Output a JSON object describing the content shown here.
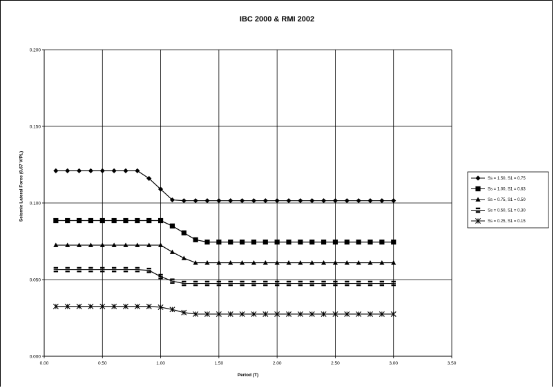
{
  "chart_data": {
    "type": "line",
    "title": "IBC 2000 & RMI 2002",
    "xlabel": "Period (T)",
    "ylabel": "Seismic Lateral Force (0.67 V/PL)",
    "xlim": [
      0,
      3.5
    ],
    "ylim": [
      0,
      0.2
    ],
    "x_ticks": [
      "0.00",
      "0.50",
      "1.00",
      "1.50",
      "2.00",
      "2.50",
      "3.00",
      "3.50"
    ],
    "y_ticks": [
      "0.000",
      "0.050",
      "0.100",
      "0.150",
      "0.200"
    ],
    "grid": true,
    "legend_position": "right",
    "x": [
      0.1,
      0.2,
      0.3,
      0.4,
      0.5,
      0.6,
      0.7,
      0.8,
      0.9,
      1.0,
      1.1,
      1.2,
      1.3,
      1.4,
      1.5,
      1.6,
      1.7,
      1.8,
      1.9,
      2.0,
      2.1,
      2.2,
      2.3,
      2.4,
      2.5,
      2.6,
      2.7,
      2.8,
      2.9,
      3.0
    ],
    "series": [
      {
        "name": "Ss = 1.50, S1 = 0.75",
        "marker": "diamond",
        "values": [
          0.121,
          0.121,
          0.121,
          0.121,
          0.121,
          0.121,
          0.121,
          0.121,
          0.116,
          0.109,
          0.102,
          0.1015,
          0.1015,
          0.1015,
          0.1015,
          0.1015,
          0.1015,
          0.1015,
          0.1015,
          0.1015,
          0.1015,
          0.1015,
          0.1015,
          0.1015,
          0.1015,
          0.1015,
          0.1015,
          0.1015,
          0.1015,
          0.1015
        ]
      },
      {
        "name": "Ss = 1.00, S1 = 0.63",
        "marker": "square",
        "values": [
          0.0885,
          0.0885,
          0.0885,
          0.0885,
          0.0885,
          0.0885,
          0.0885,
          0.0885,
          0.0885,
          0.0885,
          0.085,
          0.0805,
          0.076,
          0.0745,
          0.0745,
          0.0745,
          0.0745,
          0.0745,
          0.0745,
          0.0745,
          0.0745,
          0.0745,
          0.0745,
          0.0745,
          0.0745,
          0.0745,
          0.0745,
          0.0745,
          0.0745,
          0.0745
        ]
      },
      {
        "name": "Ss = 0.75, S1 = 0.50",
        "marker": "triangle",
        "values": [
          0.0725,
          0.0725,
          0.0725,
          0.0725,
          0.0725,
          0.0725,
          0.0725,
          0.0725,
          0.0725,
          0.0725,
          0.068,
          0.064,
          0.061,
          0.061,
          0.061,
          0.061,
          0.061,
          0.061,
          0.061,
          0.061,
          0.061,
          0.061,
          0.061,
          0.061,
          0.061,
          0.061,
          0.061,
          0.061,
          0.061,
          0.061
        ]
      },
      {
        "name": "Ss = 0.50, S1 = 0.30",
        "marker": "bar-square",
        "values": [
          0.0565,
          0.0565,
          0.0565,
          0.0565,
          0.0565,
          0.0565,
          0.0565,
          0.0565,
          0.056,
          0.052,
          0.049,
          0.0475,
          0.0475,
          0.0475,
          0.0475,
          0.0475,
          0.0475,
          0.0475,
          0.0475,
          0.0475,
          0.0475,
          0.0475,
          0.0475,
          0.0475,
          0.0475,
          0.0475,
          0.0475,
          0.0475,
          0.0475,
          0.0475
        ]
      },
      {
        "name": "Ss = 0.25, S1 = 0.15",
        "marker": "star",
        "values": [
          0.0325,
          0.0325,
          0.0325,
          0.0325,
          0.0325,
          0.0325,
          0.0325,
          0.0325,
          0.0325,
          0.032,
          0.0305,
          0.0285,
          0.0275,
          0.0275,
          0.0275,
          0.0275,
          0.0275,
          0.0275,
          0.0275,
          0.0275,
          0.0275,
          0.0275,
          0.0275,
          0.0275,
          0.0275,
          0.0275,
          0.0275,
          0.0275,
          0.0275,
          0.0275
        ]
      }
    ]
  }
}
